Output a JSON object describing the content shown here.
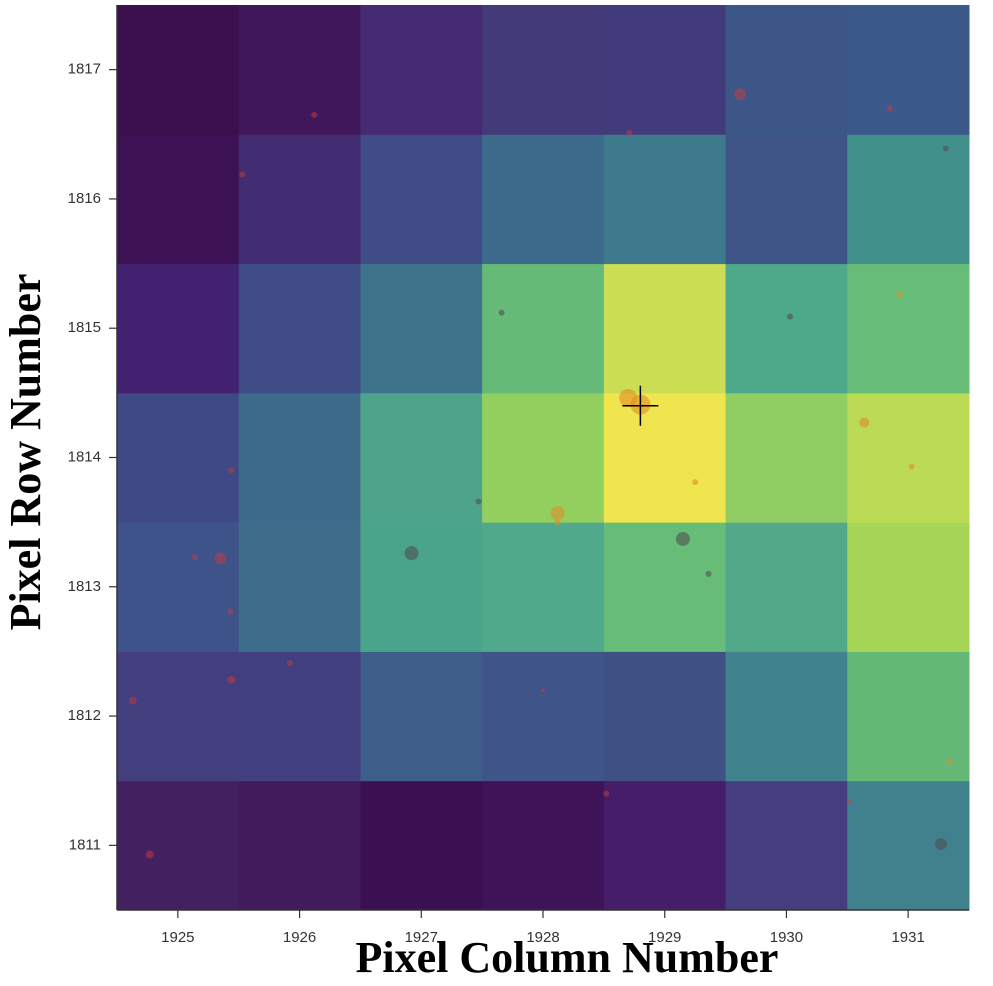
{
  "chart_data": {
    "type": "heatmap",
    "xlabel": "Pixel Column Number",
    "ylabel": "Pixel Row Number",
    "xlim": [
      1924.5,
      1931.5
    ],
    "ylim": [
      1810.5,
      1817.5
    ],
    "xticks": [
      1925,
      1926,
      1927,
      1928,
      1929,
      1930,
      1931
    ],
    "yticks": [
      1811,
      1812,
      1813,
      1814,
      1815,
      1816,
      1817
    ],
    "cell_colors": [
      [
        "#432161",
        "#411b5c",
        "#3b1050",
        "#3f1357",
        "#461d69",
        "#443e7f",
        "#41808d"
      ],
      [
        "#433f7e",
        "#423f80",
        "#3e5e8a",
        "#3f5488",
        "#3f5085",
        "#40828e",
        "#65b977"
      ],
      [
        "#3e5389",
        "#3e6d8c",
        "#4aa48b",
        "#50a98a",
        "#67bc78",
        "#52a98a",
        "#a7d656"
      ],
      [
        "#3e4986",
        "#3e6a8c",
        "#4ea48a",
        "#93cf5f",
        "#f1e54f",
        "#90cd62",
        "#bcdb55"
      ],
      [
        "#432272",
        "#3f4c85",
        "#3e748b",
        "#66ba78",
        "#cbdd52",
        "#4ea88a",
        "#67bd77"
      ],
      [
        "#3d1254",
        "#432d72",
        "#3f4c85",
        "#3c6b8c",
        "#3d7a8c",
        "#3f5588",
        "#41908b"
      ],
      [
        "#3c0f4e",
        "#41175b",
        "#462a72",
        "#433a7a",
        "#423b7b",
        "#3c5688",
        "#3b5a8b"
      ]
    ],
    "series": [
      {
        "color": "rgba(200,60,60,0.5)",
        "x": [
          1926.12,
          1929.62,
          1930.85,
          1928.71,
          1925.53,
          1925.44,
          1925.14,
          1925.35,
          1925.43,
          1925.92,
          1925.44,
          1924.63,
          1928.0,
          1928.52,
          1930.52,
          1924.77
        ],
        "values": [
          1816.65,
          1816.81,
          1816.7,
          1816.51,
          1816.19,
          1813.9,
          1813.23,
          1813.22,
          1812.81,
          1812.41,
          1812.28,
          1812.12,
          1812.2,
          1811.4,
          1811.34,
          1810.93
        ],
        "sizes": [
          3,
          6,
          3,
          3,
          3,
          3,
          3,
          6,
          3,
          3,
          4,
          4,
          2,
          3,
          2,
          4
        ]
      },
      {
        "color": "rgba(225,140,40,0.6)",
        "x": [
          1930.93,
          1928.7,
          1928.8,
          1930.64,
          1931.03,
          1929.25,
          1928.12,
          1928.12,
          1931.34
        ],
        "values": [
          1815.26,
          1814.46,
          1814.41,
          1814.27,
          1813.93,
          1813.81,
          1813.57,
          1813.5,
          1811.65
        ],
        "sizes": [
          3,
          9,
          10,
          5,
          3,
          3,
          7,
          3,
          3
        ]
      },
      {
        "color": "rgba(80,80,80,0.6)",
        "x": [
          1931.31,
          1927.66,
          1930.03,
          1927.47,
          1926.92,
          1929.15,
          1929.36,
          1931.27
        ],
        "values": [
          1816.39,
          1815.12,
          1815.09,
          1813.66,
          1813.26,
          1813.37,
          1813.1,
          1811.01
        ],
        "sizes": [
          3,
          3,
          3,
          3,
          7,
          7,
          3,
          6
        ]
      }
    ],
    "target": {
      "x": 1928.8,
      "y": 1814.4
    }
  }
}
